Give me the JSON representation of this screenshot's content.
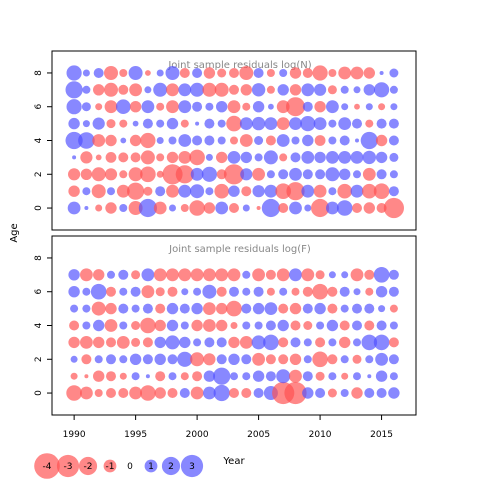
{
  "chart_data": [
    {
      "type": "scatter",
      "subtype": "bubble",
      "title": "Joint sample residuals log(N)",
      "ylabel": "Age",
      "xlim": [
        1988.2,
        2017.8
      ],
      "ylim": [
        -1.3,
        9.3
      ],
      "y_ticks": [
        0,
        2,
        4,
        6,
        8
      ],
      "legend_labels": [
        "-4",
        "-3",
        "-2",
        "-1",
        "0",
        "1",
        "2",
        "3"
      ],
      "x_ticks": [
        1990,
        1995,
        2000,
        2005,
        2010,
        2015
      ],
      "xlabel": "Year",
      "positive_color": "#5050ff",
      "negative_color": "#ff5050",
      "years": [
        1990,
        1991,
        1992,
        1993,
        1994,
        1995,
        1996,
        1997,
        1998,
        1999,
        2000,
        2001,
        2002,
        2003,
        2004,
        2005,
        2006,
        2007,
        2008,
        2009,
        2010,
        2011,
        2012,
        2013,
        2014,
        2015,
        2016
      ],
      "ages": [
        0,
        1,
        2,
        3,
        4,
        5,
        6,
        7,
        8
      ],
      "residuals": [
        [
          1.0,
          0.1,
          -0.3,
          -0.8,
          0.4,
          -1.2,
          2.0,
          -1.0,
          0.3,
          -0.4,
          -1.5,
          -0.8,
          1.0,
          -0.6,
          0.3,
          -0.1,
          2.0,
          -0.6,
          1.0,
          0.3,
          -2.0,
          1.0,
          1.5,
          -0.6,
          -0.8,
          -0.6,
          -2.5
        ],
        [
          -0.8,
          0.4,
          -1.2,
          0.4,
          -1.0,
          -1.8,
          -0.5,
          0.6,
          -1.0,
          1.0,
          1.2,
          0.4,
          -1.3,
          0.8,
          -0.6,
          0.9,
          1.0,
          -1.5,
          -2.0,
          1.0,
          -1.0,
          0.4,
          -1.3,
          1.0,
          -1.3,
          -1.5,
          0.6
        ],
        [
          -0.9,
          -0.8,
          -1.2,
          -0.9,
          -0.4,
          -1.2,
          -1.5,
          -0.3,
          -2.5,
          -2.0,
          1.0,
          1.4,
          -0.6,
          -2.5,
          0.9,
          -1.0,
          0.4,
          0.6,
          1.0,
          0.6,
          0.6,
          1.2,
          0.8,
          0.4,
          -1.0,
          0.6,
          0.4
        ],
        [
          0.1,
          -0.9,
          -0.2,
          -0.7,
          -0.6,
          -0.6,
          -1.2,
          -0.4,
          -0.8,
          -1.0,
          -1.5,
          0.3,
          -0.8,
          1.0,
          0.8,
          0.4,
          1.2,
          -0.4,
          0.6,
          1.0,
          0.8,
          1.0,
          1.0,
          1.0,
          1.1,
          0.8,
          0.5
        ],
        [
          1.8,
          1.7,
          -1.0,
          -0.8,
          0.2,
          -0.8,
          -1.4,
          0.3,
          0.4,
          1.0,
          0.6,
          0.6,
          0.4,
          -0.4,
          -1.0,
          0.5,
          -0.6,
          1.0,
          0.4,
          0.8,
          -0.7,
          0.4,
          0.6,
          0.1,
          1.8,
          -0.8,
          0.6
        ],
        [
          0.8,
          0.3,
          0.9,
          -0.5,
          -0.4,
          0.2,
          0.6,
          0.4,
          0.8,
          -0.4,
          0.1,
          0.6,
          0.4,
          -1.5,
          1.0,
          1.1,
          1.0,
          -1.0,
          1.0,
          1.4,
          1.0,
          0.4,
          1.0,
          0.6,
          -0.4,
          0.6,
          0.6
        ],
        [
          1.4,
          0.5,
          -0.3,
          -1.0,
          1.3,
          -0.8,
          1.0,
          -0.4,
          -1.0,
          1.0,
          0.6,
          0.4,
          0.8,
          -1.0,
          -0.4,
          0.8,
          0.2,
          -1.0,
          -2.2,
          0.6,
          -0.8,
          1.0,
          0.3,
          -0.2,
          0.3,
          -0.3,
          0.3
        ],
        [
          1.8,
          0.4,
          -0.8,
          -1.2,
          -0.6,
          -1.0,
          0.3,
          1.2,
          -1.0,
          1.0,
          1.2,
          -1.2,
          -1.2,
          -0.6,
          -0.8,
          1.1,
          -0.4,
          0.8,
          -0.8,
          1.0,
          0.9,
          -0.5,
          0.4,
          0.3,
          0.8,
          1.4,
          0.4
        ],
        [
          1.4,
          0.3,
          0.6,
          -1.2,
          -0.4,
          1.2,
          -0.2,
          0.3,
          1.2,
          -0.6,
          0.6,
          -0.8,
          -0.5,
          -0.6,
          -1.2,
          0.6,
          -0.4,
          0.4,
          -0.8,
          -0.6,
          -1.4,
          -0.4,
          -1.0,
          -1.0,
          -0.8,
          0.1,
          0.5
        ]
      ]
    },
    {
      "type": "scatter",
      "subtype": "bubble",
      "title": "Joint sample residuals log(F)",
      "ylabel": "Age",
      "xlabel": "Year",
      "xlim": [
        1988.2,
        2017.8
      ],
      "ylim": [
        -1.3,
        9.3
      ],
      "y_ticks": [
        0,
        2,
        4,
        6,
        8
      ],
      "x_ticks": [
        1990,
        1995,
        2000,
        2005,
        2010,
        2015
      ],
      "positive_color": "#5050ff",
      "negative_color": "#ff5050",
      "years": [
        1990,
        1991,
        1992,
        1993,
        1994,
        1995,
        1996,
        1997,
        1998,
        1999,
        2000,
        2001,
        2002,
        2003,
        2004,
        2005,
        2006,
        2007,
        2008,
        2009,
        2010,
        2011,
        2012,
        2013,
        2014,
        2015,
        2016
      ],
      "ages": [
        0,
        1,
        2,
        3,
        4,
        5,
        6,
        7
      ],
      "residuals": [
        [
          -1.5,
          -1.0,
          -0.4,
          -0.6,
          -0.6,
          -1.0,
          -1.5,
          -0.8,
          -0.6,
          0.6,
          -1.0,
          1.0,
          1.6,
          -0.6,
          -0.6,
          0.6,
          1.2,
          -3.0,
          -3.0,
          0.8,
          0.6,
          -0.5,
          0.4,
          -0.8,
          0.6,
          0.6,
          0.8
        ],
        [
          -0.3,
          -0.1,
          -0.8,
          -0.6,
          -0.3,
          0.4,
          0.1,
          -0.6,
          0.4,
          -0.4,
          -0.6,
          0.8,
          1.8,
          0.4,
          0.4,
          0.8,
          0.6,
          1.2,
          -1.0,
          0.6,
          -0.5,
          0.4,
          -0.3,
          0.4,
          0.1,
          0.8,
          0.4
        ],
        [
          0.3,
          -0.6,
          0.4,
          0.6,
          0.4,
          0.8,
          0.6,
          0.8,
          0.6,
          1.4,
          -1.2,
          -0.9,
          0.6,
          0.8,
          0.6,
          -1.0,
          -0.6,
          -0.6,
          -0.8,
          0.4,
          -1.5,
          -0.6,
          0.4,
          -0.5,
          0.4,
          1.0,
          0.6
        ],
        [
          -0.8,
          -1.0,
          -0.8,
          -0.6,
          -1.0,
          -0.5,
          -0.6,
          0.8,
          1.2,
          0.8,
          0.4,
          0.6,
          0.6,
          -0.8,
          -1.0,
          1.2,
          1.5,
          -0.6,
          0.6,
          0.4,
          -0.6,
          0.4,
          -0.8,
          0.4,
          1.5,
          1.5,
          -0.6
        ],
        [
          -0.6,
          0.4,
          0.8,
          -1.0,
          0.4,
          -0.5,
          -1.5,
          -0.8,
          0.8,
          0.4,
          -0.8,
          -1.0,
          -0.8,
          -0.3,
          0.4,
          0.4,
          0.6,
          0.8,
          -0.6,
          -0.5,
          0.4,
          0.8,
          -0.6,
          0.6,
          -0.6,
          0.6,
          0.4
        ],
        [
          0.4,
          0.4,
          -1.2,
          -0.8,
          0.6,
          0.4,
          0.6,
          -0.6,
          0.8,
          0.6,
          0.8,
          -1.0,
          -0.8,
          -1.5,
          0.6,
          0.8,
          1.0,
          -0.6,
          -0.8,
          0.6,
          0.8,
          -0.6,
          0.4,
          0.6,
          0.6,
          0.3,
          -0.4
        ],
        [
          0.8,
          0.4,
          1.5,
          -0.6,
          0.4,
          0.6,
          -1.0,
          -0.5,
          -0.6,
          0.3,
          0.4,
          1.2,
          -0.6,
          0.6,
          0.4,
          0.6,
          -0.4,
          0.4,
          -0.4,
          -0.6,
          -1.5,
          -0.6,
          0.6,
          0.3,
          -0.4,
          0.8,
          0.6
        ],
        [
          0.8,
          -1.0,
          -0.8,
          0.4,
          0.6,
          -0.5,
          1.0,
          -1.0,
          -1.0,
          -1.0,
          -1.0,
          -1.0,
          -1.0,
          -1.0,
          0.4,
          -1.0,
          -0.6,
          -1.0,
          1.0,
          -1.0,
          -0.5,
          0.3,
          0.3,
          -1.0,
          -0.6,
          1.5,
          0.6
        ]
      ]
    }
  ]
}
